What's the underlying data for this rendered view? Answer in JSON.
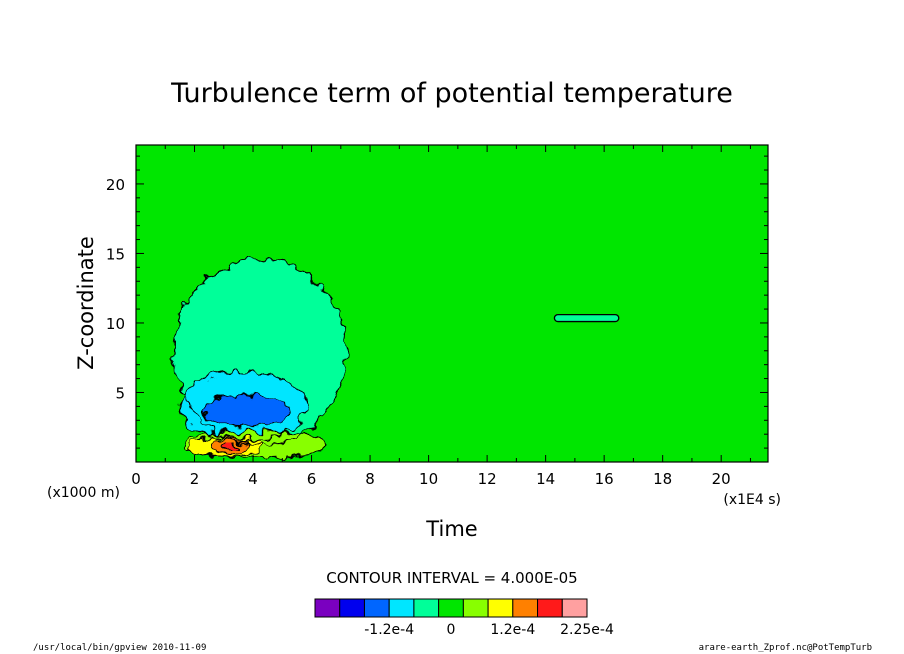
{
  "chart_data": {
    "type": "contour",
    "title": "Turbulence term of potential temperature",
    "xlabel": "Time",
    "ylabel": "Z-coordinate",
    "x_unit": "(x1E4 s)",
    "y_unit": "(x1000 m)",
    "xlim": [
      0,
      21.6
    ],
    "ylim": [
      0,
      22.8
    ],
    "x_ticks": [
      "0",
      "2",
      "4",
      "6",
      "8",
      "10",
      "12",
      "14",
      "16",
      "18",
      "20"
    ],
    "y_ticks": [
      "5",
      "10",
      "15",
      "20"
    ],
    "contour_interval_text": "CONTOUR INTERVAL = 4.000E-05",
    "colorbar": {
      "colors": [
        "#7a00c0",
        "#0000ee",
        "#0066ff",
        "#00e6ff",
        "#00ff99",
        "#00e600",
        "#88ff00",
        "#ffff00",
        "#ff8000",
        "#ff1a1a",
        "#ffa0a0"
      ],
      "labels": [
        "-1.2e-4",
        "0",
        "1.2e-4",
        "2.25e-4"
      ],
      "label_values": [
        -0.00012,
        0,
        0.00012,
        0.000225
      ],
      "levels": [
        -0.00024,
        -0.0002,
        -0.00016,
        -0.00012,
        -8e-05,
        -4e-05,
        4e-05,
        8e-05,
        0.00012,
        0.00016,
        0.0002,
        0.000225
      ]
    },
    "background_color": "#00e600",
    "regions": [
      {
        "level": "weak_negative",
        "color": "#00ff99",
        "t_range": [
          1.3,
          7.2
        ],
        "z_range": [
          1.2,
          14.6
        ]
      },
      {
        "level": "negative",
        "color": "#00e6ff",
        "t_range": [
          1.5,
          5.8
        ],
        "z_range": [
          1.5,
          6.5
        ]
      },
      {
        "level": "strong_negative",
        "color": "#0066ff",
        "t_range": [
          2.3,
          5.3
        ],
        "z_range": [
          2.5,
          4.8
        ]
      },
      {
        "level": "weak_positive",
        "color": "#88ff00",
        "t_range": [
          1.6,
          6.5
        ],
        "z_range": [
          0.3,
          2.2
        ]
      },
      {
        "level": "positive",
        "color": "#ffff00",
        "t_range": [
          1.8,
          4.4
        ],
        "z_range": [
          0.4,
          1.8
        ]
      },
      {
        "level": "strong_positive",
        "color": "#ff8000",
        "t_range": [
          2.6,
          3.9
        ],
        "z_range": [
          0.6,
          1.7
        ]
      },
      {
        "level": "max_positive",
        "color": "#ff1a1a",
        "t_range": [
          2.9,
          3.5
        ],
        "z_range": [
          0.9,
          1.3
        ]
      }
    ],
    "isolated_contour": {
      "t_range": [
        14.3,
        16.5
      ],
      "z_range": [
        10.1,
        10.6
      ]
    }
  },
  "footer": {
    "left": "/usr/local/bin/gpview  2010-11-09",
    "right": "arare-earth_Zprof.nc@PotTempTurb"
  }
}
